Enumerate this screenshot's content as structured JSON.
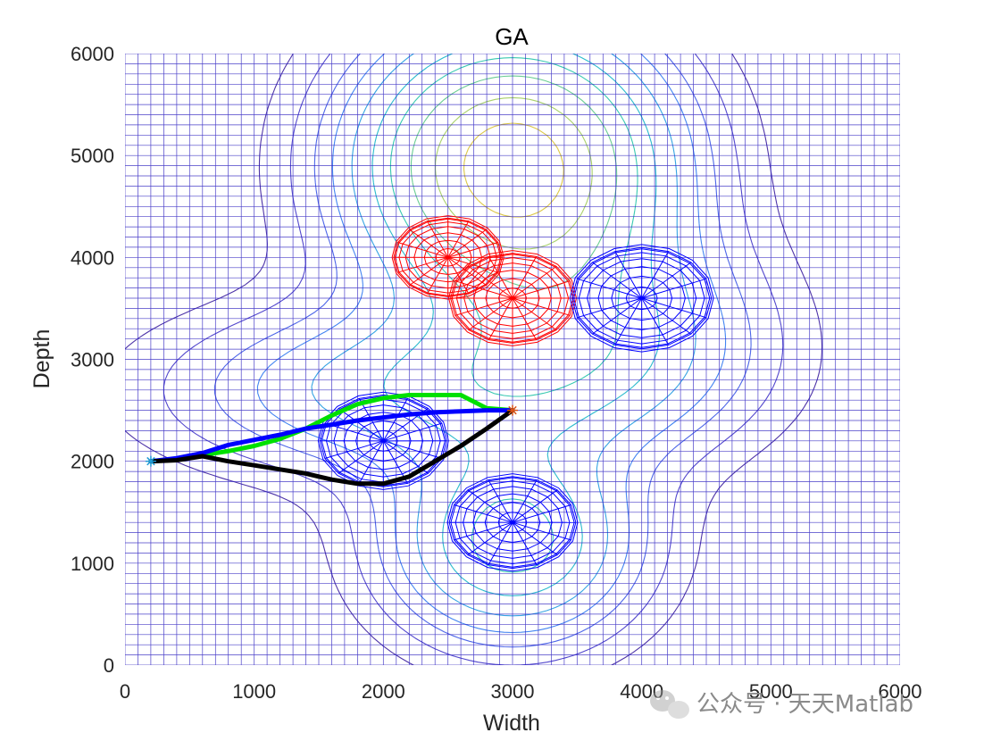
{
  "chart_data": {
    "type": "contour",
    "title": "GA",
    "xlabel": "Width",
    "ylabel": "Depth",
    "xlim": [
      0,
      6000
    ],
    "ylim": [
      0,
      6000
    ],
    "xticks": [
      0,
      1000,
      2000,
      3000,
      4000,
      5000,
      6000
    ],
    "yticks": [
      0,
      1000,
      2000,
      3000,
      4000,
      5000,
      6000
    ],
    "xtick_labels": [
      "0",
      "1000",
      "2000",
      "3000",
      "4000",
      "5000",
      "6000"
    ],
    "ytick_labels": [
      "0",
      "1000",
      "2000",
      "3000",
      "4000",
      "5000",
      "6000"
    ],
    "grid": "mesh",
    "terrain_peaks": [
      {
        "x": 3000,
        "y": 4900,
        "sx": 800,
        "sy": 900,
        "h": 1.0
      },
      {
        "x": 3000,
        "y": 1200,
        "sx": 650,
        "sy": 650,
        "h": 0.55
      },
      {
        "x": 2200,
        "y": 2700,
        "sx": 1200,
        "sy": 550,
        "h": 0.35
      },
      {
        "x": 3800,
        "y": 3200,
        "sx": 800,
        "sy": 700,
        "h": 0.3
      }
    ],
    "threats": [
      {
        "x": 2500,
        "y": 4000,
        "r": 420,
        "color": "#ff0000"
      },
      {
        "x": 3000,
        "y": 3600,
        "r": 480,
        "color": "#ff0000"
      },
      {
        "x": 4000,
        "y": 3600,
        "r": 540,
        "color": "#0000ff"
      },
      {
        "x": 2000,
        "y": 2200,
        "r": 490,
        "color": "#0000ff"
      },
      {
        "x": 3000,
        "y": 1400,
        "r": 490,
        "color": "#0000ff"
      }
    ],
    "start": {
      "x": 200,
      "y": 2000,
      "color": "#1f9bd6"
    },
    "goal": {
      "x": 3000,
      "y": 2500,
      "color": "#d95319"
    },
    "series": [
      {
        "color": "#00e000",
        "x": [
          200,
          400,
          600,
          800,
          1000,
          1200,
          1400,
          1600,
          1800,
          2000,
          2200,
          2400,
          2600,
          2800,
          3000
        ],
        "y": [
          2000,
          2020,
          2060,
          2100,
          2150,
          2220,
          2320,
          2450,
          2560,
          2620,
          2650,
          2650,
          2650,
          2520,
          2500
        ]
      },
      {
        "color": "#0000ff",
        "x": [
          200,
          400,
          600,
          800,
          1000,
          1200,
          1400,
          1600,
          1800,
          2000,
          2200,
          2400,
          2600,
          2800,
          3000
        ],
        "y": [
          2000,
          2030,
          2080,
          2160,
          2210,
          2260,
          2320,
          2360,
          2400,
          2430,
          2460,
          2480,
          2490,
          2500,
          2500
        ]
      },
      {
        "color": "#000000",
        "x": [
          200,
          400,
          600,
          800,
          1000,
          1200,
          1400,
          1600,
          1800,
          2000,
          2200,
          2400,
          2600,
          2800,
          3000
        ],
        "y": [
          2000,
          2010,
          2050,
          2000,
          1960,
          1920,
          1880,
          1820,
          1780,
          1780,
          1850,
          2000,
          2150,
          2320,
          2500
        ]
      }
    ]
  },
  "watermark": {
    "text": "公众号 · 天天Matlab",
    "icon": "wechat-icon"
  }
}
